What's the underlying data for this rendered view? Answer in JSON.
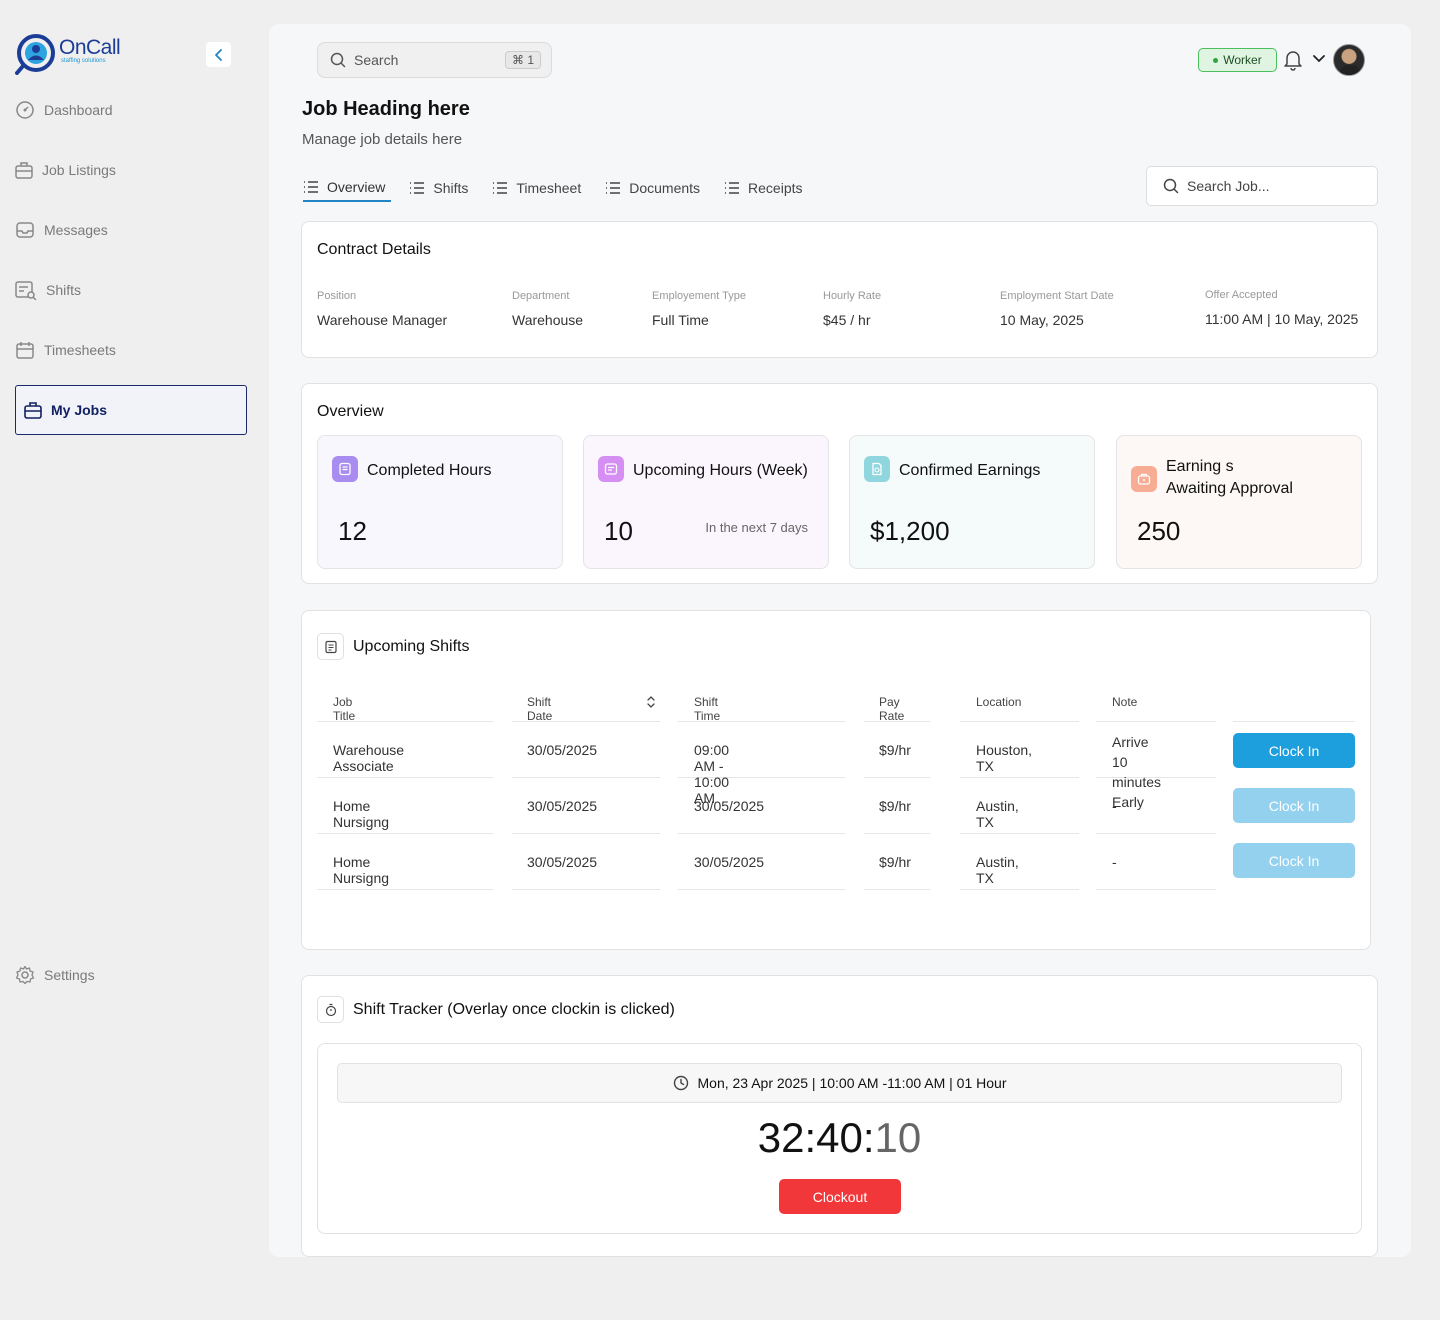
{
  "brand": {
    "name": "OnCall",
    "tagline": "staffing solutions"
  },
  "sidebar": {
    "items": [
      {
        "label": "Dashboard",
        "icon": "dashboard-icon"
      },
      {
        "label": "Job Listings",
        "icon": "briefcase-icon"
      },
      {
        "label": "Messages",
        "icon": "inbox-icon"
      },
      {
        "label": "Shifts",
        "icon": "shifts-icon"
      },
      {
        "label": "Timesheets",
        "icon": "calendar-icon"
      },
      {
        "label": "My Jobs",
        "icon": "briefcase-icon",
        "active": true
      }
    ],
    "settings_label": "Settings"
  },
  "header": {
    "search_placeholder": "Search",
    "search_shortcut": "⌘ 1",
    "role_badge": "Worker"
  },
  "page": {
    "title": "Job Heading here",
    "subtitle": "Manage job details here"
  },
  "tabs": [
    "Overview",
    "Shifts",
    "Timesheet",
    "Documents",
    "Receipts"
  ],
  "job_search_placeholder": "Search Job...",
  "contract": {
    "title": "Contract Details",
    "fields": [
      {
        "label": "Position",
        "value": "Warehouse Manager"
      },
      {
        "label": "Department",
        "value": "Warehouse"
      },
      {
        "label": "Employement Type",
        "value": "Full Time"
      },
      {
        "label": "Hourly Rate",
        "value": "$45 / hr"
      },
      {
        "label": "Employment Start Date",
        "value": "10 May, 2025"
      },
      {
        "label": "Offer Accepted",
        "value": "11:00 AM | 10 May, 2025"
      }
    ]
  },
  "overview": {
    "title": "Overview",
    "stats": [
      {
        "title": "Completed Hours",
        "value": "12",
        "note": "",
        "icon_color": "#a98cf0",
        "bg": "#f8f7fd"
      },
      {
        "title": "Upcoming Hours (Week)",
        "value": "10",
        "note": "In the next 7 days",
        "icon_color": "#d58ff2",
        "bg": "#fbf6fd"
      },
      {
        "title": "Confirmed Earnings",
        "value": "$1,200",
        "note": "",
        "icon_color": "#8fd6de",
        "bg": "#f5fafb"
      },
      {
        "title_line1": "Earning s",
        "title_line2": "Awaiting Approval",
        "value": "250",
        "note": "",
        "icon_color": "#f7ad94",
        "bg": "#fdf8f5"
      }
    ]
  },
  "shifts": {
    "title": "Upcoming Shifts",
    "columns": [
      "Job Title",
      "Shift Date",
      "Shift Time",
      "Pay Rate",
      "Location",
      "Note"
    ],
    "rows": [
      {
        "job": "Warehouse Associate",
        "date": "30/05/2025",
        "time": "09:00 AM - 10:00 AM",
        "rate": "$9/hr",
        "location": "Houston, TX",
        "note_line1": "Arrive 10 minutes",
        "note_line2": "Early",
        "action": "Clock In",
        "enabled": true
      },
      {
        "job": "Home Nursigng",
        "date": "30/05/2025",
        "time": "30/05/2025",
        "rate": "$9/hr",
        "location": "Austin, TX",
        "note_line1": "-",
        "note_line2": "",
        "action": "Clock In",
        "enabled": false
      },
      {
        "job": "Home Nursigng",
        "date": "30/05/2025",
        "time": "30/05/2025",
        "rate": "$9/hr",
        "location": "Austin, TX",
        "note_line1": "-",
        "note_line2": "",
        "action": "Clock In",
        "enabled": false
      }
    ]
  },
  "tracker": {
    "title": "Shift Tracker (Overlay once clockin is clicked)",
    "schedule": "Mon, 23 Apr 2025 | 10:00 AM -11:00 AM | 01 Hour",
    "timer_main": "32:40:",
    "timer_seconds": "10",
    "clockout_label": "Clockout"
  },
  "colors": {
    "accent": "#2184c4",
    "clock_in_active": "#1e9fdd",
    "clock_in_disabled": "#93d1ef",
    "clockout": "#f2373a"
  }
}
